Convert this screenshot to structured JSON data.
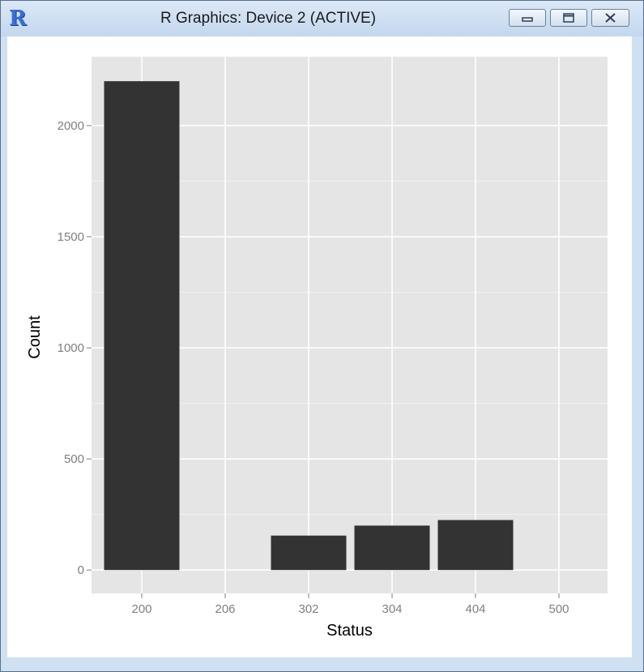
{
  "window": {
    "title": "R Graphics: Device 2 (ACTIVE)",
    "app_icon": "r-logo-icon",
    "logo_text": "R",
    "controls": [
      "minimize-icon",
      "maximize-icon",
      "close-icon"
    ]
  },
  "chart_data": {
    "type": "bar",
    "categories": [
      "200",
      "206",
      "302",
      "304",
      "404",
      "500"
    ],
    "values": [
      2200,
      0,
      155,
      200,
      225,
      0
    ],
    "title": "",
    "xlabel": "Status",
    "ylabel": "Count",
    "ylim": [
      -105,
      2310
    ],
    "yticks": [
      0,
      500,
      1000,
      1500,
      2000
    ],
    "grid": true,
    "colors": {
      "bar": "#333333",
      "panel": "#e5e5e5",
      "grid": "#ffffff",
      "tick_text": "#7f7f7f"
    }
  }
}
